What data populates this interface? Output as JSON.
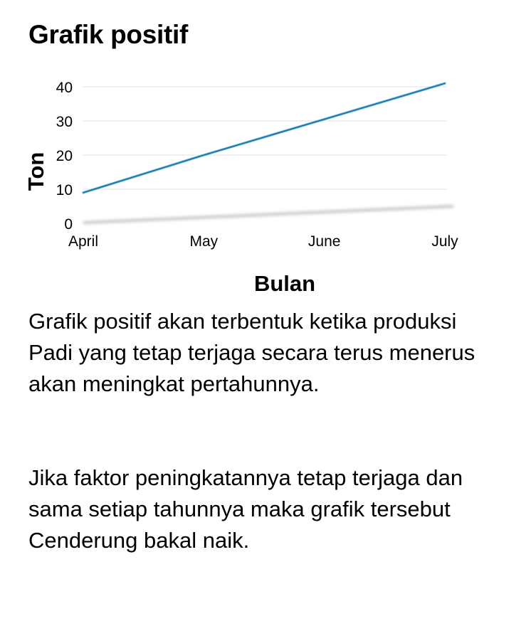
{
  "page": {
    "title": "Grafik positif",
    "paragraphs": [
      "Grafik positif akan terbentuk ketika produksi Padi yang tetap terjaga secara terus menerus akan meningkat pertahunnya.",
      "Jika faktor peningkatannya tetap terjaga dan sama setiap tahunnya maka grafik tersebut Cenderung bakal naik."
    ]
  },
  "chart_data": {
    "type": "line",
    "title": "",
    "xlabel": "Bulan",
    "ylabel": "Ton",
    "categories": [
      "April",
      "May",
      "June",
      "July"
    ],
    "ylim": [
      0,
      40
    ],
    "yticks": [
      0,
      10,
      20,
      30,
      40
    ],
    "grid": true,
    "legend": "none",
    "series": [
      {
        "values": [
          9,
          20,
          30.5,
          41
        ],
        "color": "#4aa8d8"
      }
    ]
  }
}
